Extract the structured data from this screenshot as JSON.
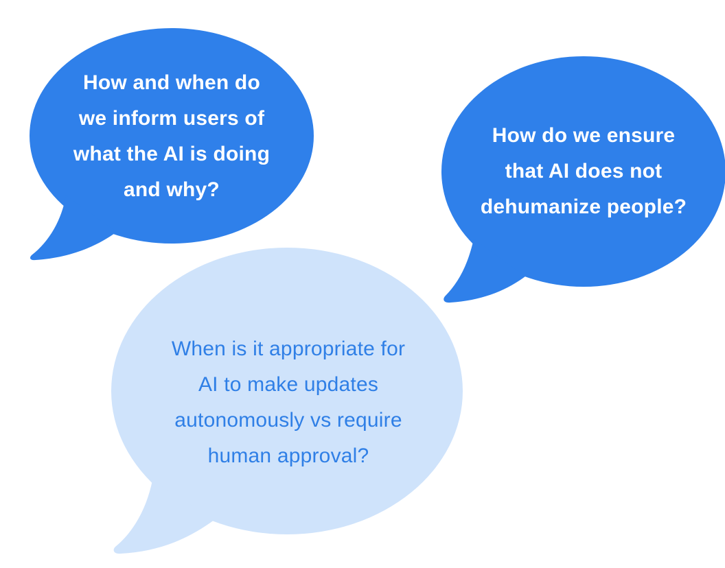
{
  "colors": {
    "dark_bubble": "#2f80ea",
    "light_bubble": "#cfe3fb",
    "dark_bubble_text": "#ffffff",
    "light_bubble_text": "#2f7fe6"
  },
  "bubbles": [
    {
      "style": "dark",
      "lines": [
        "How and when do",
        "we inform users of",
        "what the AI is doing",
        "and why?"
      ]
    },
    {
      "style": "dark",
      "lines": [
        "How do we ensure",
        "that AI does not",
        "dehumanize people?"
      ]
    },
    {
      "style": "light",
      "lines": [
        "When is it appropriate for",
        "AI to make updates",
        "autonomously vs require",
        "human approval?"
      ]
    }
  ]
}
